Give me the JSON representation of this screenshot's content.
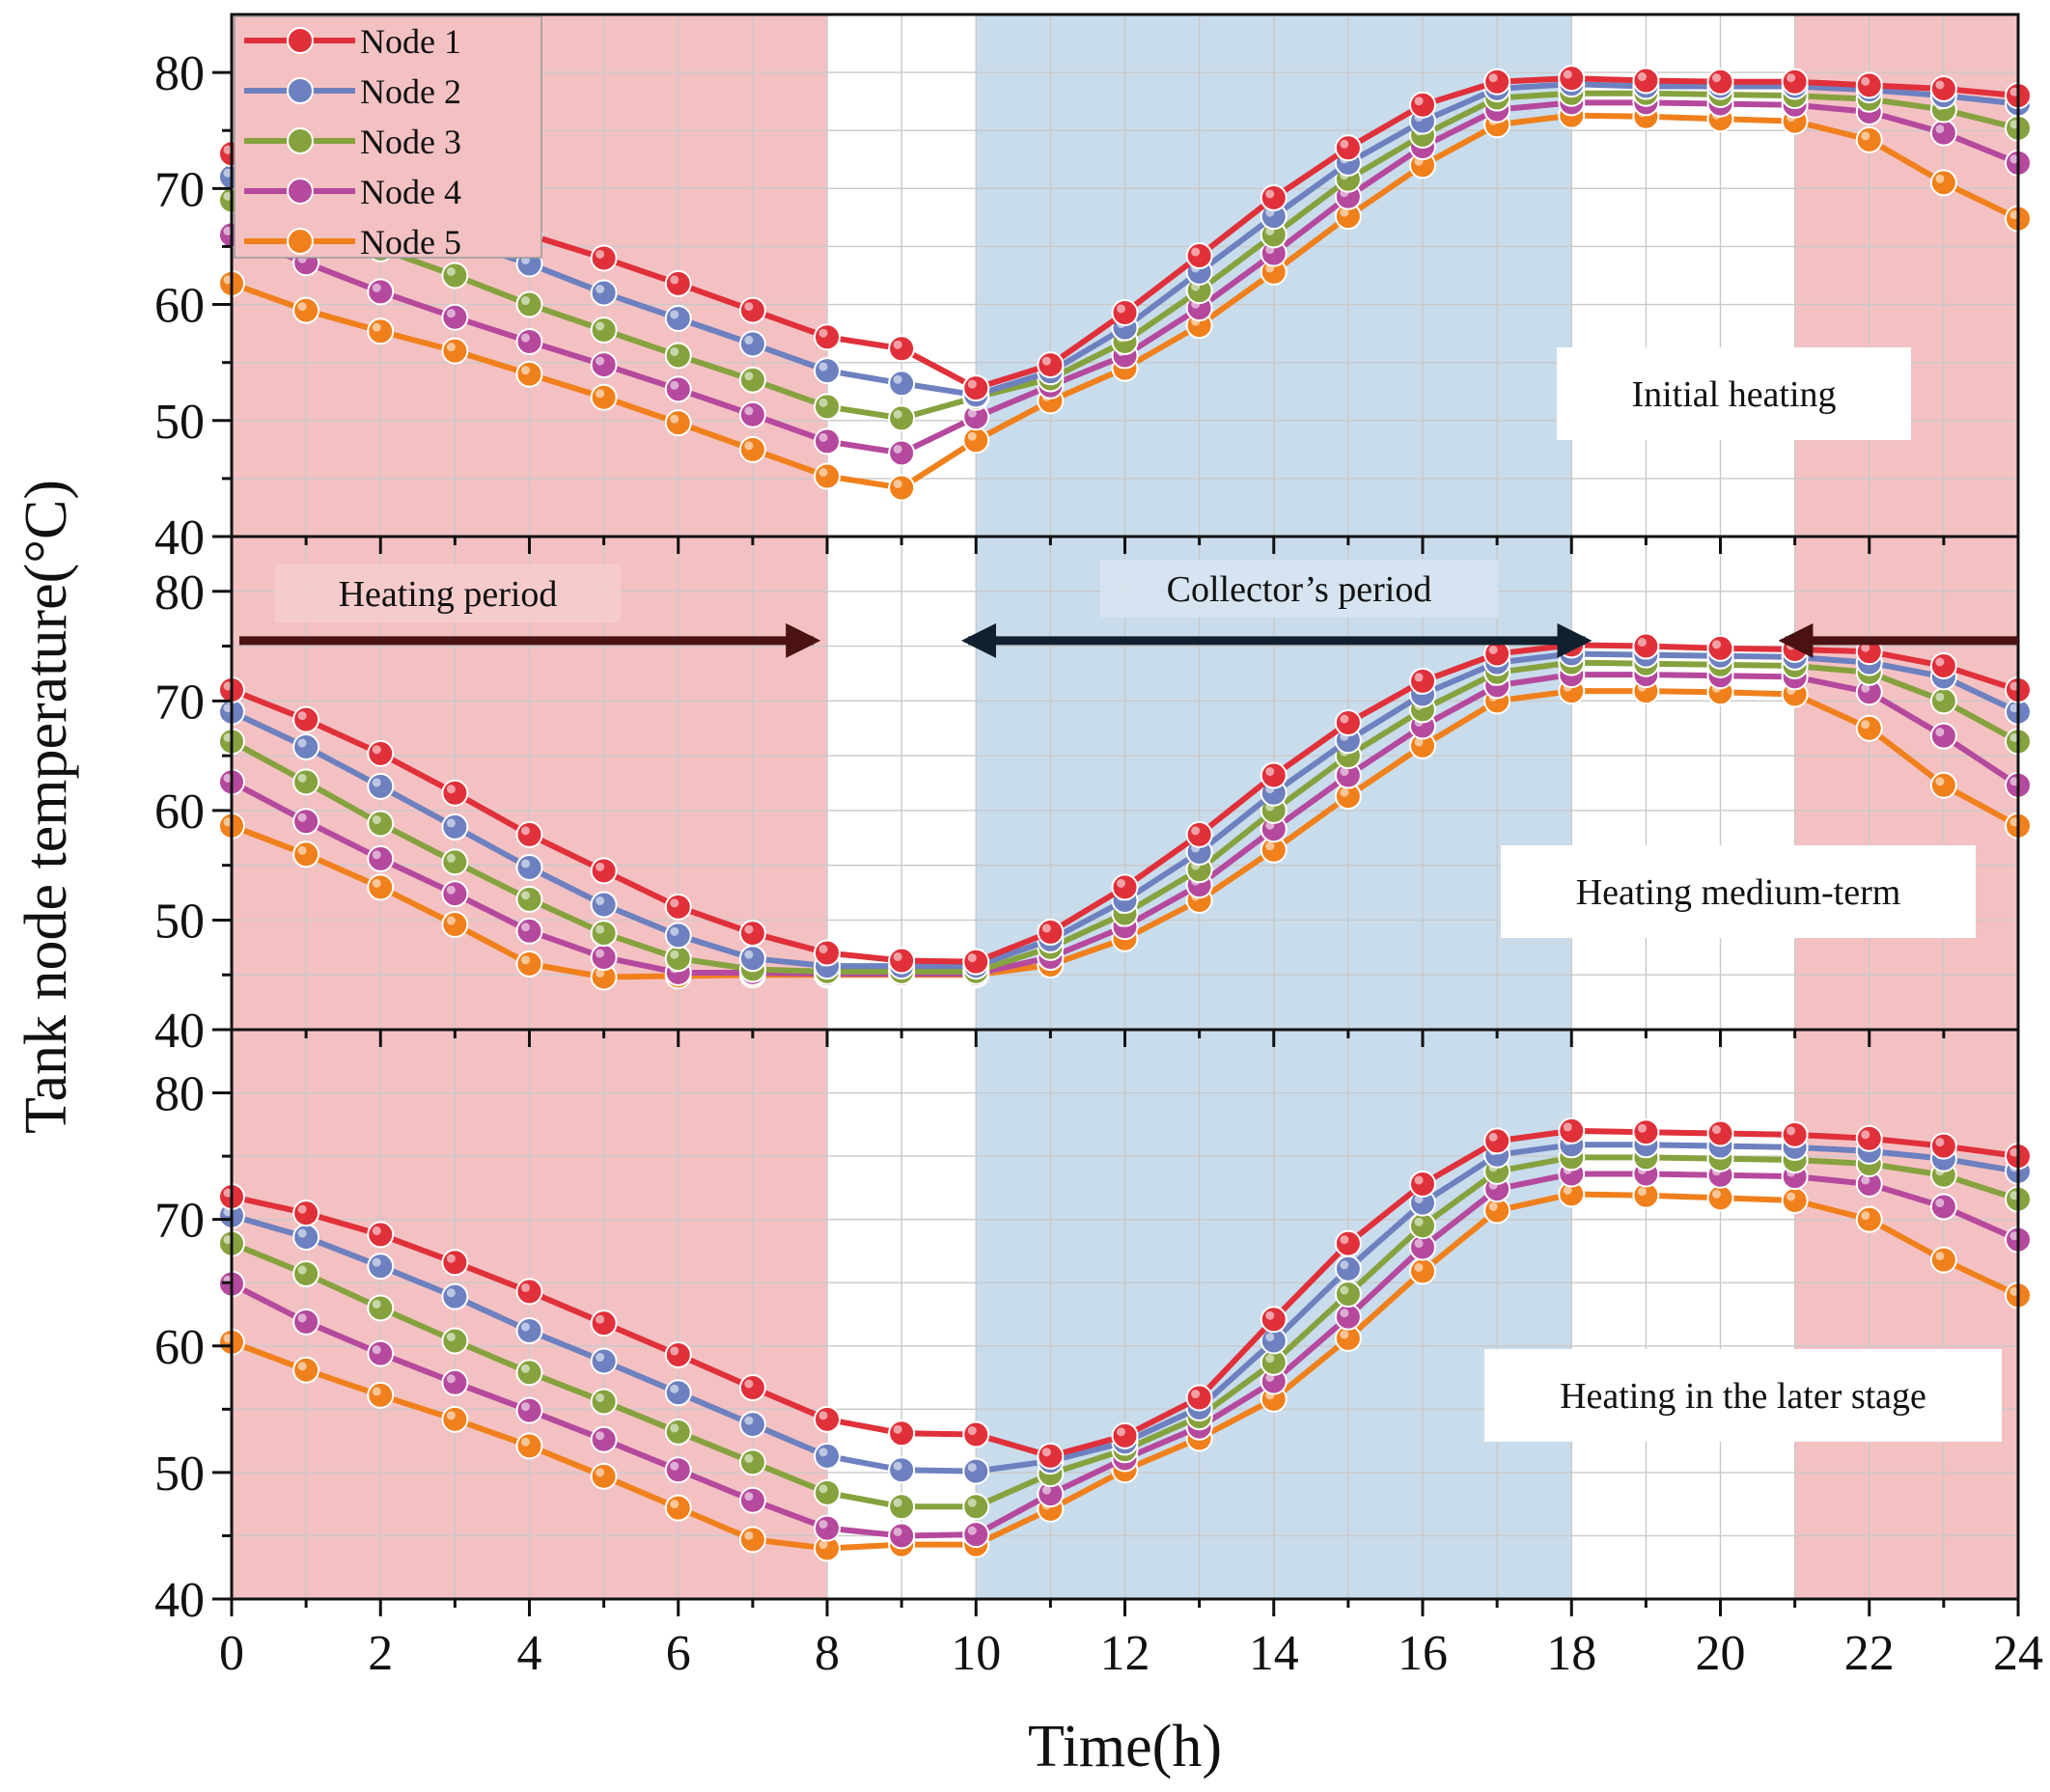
{
  "chart_data": {
    "type": "line",
    "ylabel": "Tank node temperature(°C)",
    "xlabel": "Time(h)",
    "xlim": [
      0,
      24
    ],
    "x_ticks": [
      "0",
      "2",
      "4",
      "6",
      "8",
      "10",
      "12",
      "14",
      "16",
      "18",
      "20",
      "22",
      "24"
    ],
    "x_ticks_values": [
      0,
      2,
      4,
      6,
      8,
      10,
      12,
      14,
      16,
      18,
      20,
      22,
      24
    ],
    "ylim": [
      40,
      85
    ],
    "y_ticks": [
      "40",
      "50",
      "60",
      "70",
      "80"
    ],
    "y_ticks_values": [
      40,
      50,
      60,
      70,
      80
    ],
    "grid": true,
    "legend_position": "top-left",
    "colors": {
      "heating_band": "#f4c1c3",
      "collector_band": "#c8dcec",
      "Node 1": "#e0303a",
      "Node 2": "#6d80bf",
      "Node 3": "#86a23e",
      "Node 4": "#b5499d",
      "Node 5": "#f0801c",
      "arrow_heating": "#4a1212",
      "arrow_collector": "#10202e"
    },
    "shaded_bands": [
      {
        "period": "heating",
        "x_start": 0,
        "x_end": 8
      },
      {
        "period": "collector",
        "x_start": 10,
        "x_end": 18
      },
      {
        "period": "heating",
        "x_start": 21,
        "x_end": 24
      }
    ],
    "period_annotations": [
      {
        "text": "Heating period",
        "arrow": "right",
        "x_start": 0,
        "x_end": 8,
        "y": 75.5
      },
      {
        "text": "Collector’s period",
        "arrow": "both",
        "x_start": 10,
        "x_end": 18,
        "y": 75.5
      },
      {
        "text": "",
        "arrow": "left",
        "x_start": 21,
        "x_end": 24,
        "y": 75.5
      }
    ],
    "x": [
      0,
      1,
      2,
      3,
      4,
      5,
      6,
      7,
      8,
      9,
      10,
      11,
      12,
      13,
      14,
      15,
      16,
      17,
      18,
      19,
      20,
      21,
      22,
      23,
      24
    ],
    "panels": [
      {
        "title": "Initial heating",
        "series": [
          {
            "name": "Node 1",
            "values": [
              73,
              71.5,
              69.8,
              68,
              66,
              64,
              61.8,
              59.5,
              57.2,
              56.2,
              52.8,
              54.8,
              59.3,
              64.2,
              69.2,
              73.5,
              77.2,
              79.2,
              79.5,
              79.3,
              79.2,
              79.2,
              78.9,
              78.6,
              78
            ]
          },
          {
            "name": "Node 2",
            "values": [
              71,
              69,
              67.4,
              65.6,
              63.5,
              61,
              58.8,
              56.6,
              54.3,
              53.2,
              52.2,
              54.2,
              58,
              62.8,
              67.6,
              72.2,
              75.8,
              78.6,
              79,
              78.8,
              78.8,
              78.8,
              78.5,
              78,
              77.3
            ]
          },
          {
            "name": "Node 3",
            "values": [
              69,
              67,
              64.8,
              62.5,
              60,
              57.8,
              55.6,
              53.5,
              51.2,
              50.2,
              52,
              53.6,
              56.8,
              61.2,
              66,
              70.8,
              74.6,
              77.8,
              78.2,
              78.2,
              78.1,
              78,
              77.7,
              76.8,
              75.2
            ]
          },
          {
            "name": "Node 4",
            "values": [
              66,
              63.6,
              61.1,
              58.9,
              56.8,
              54.8,
              52.7,
              50.5,
              48.2,
              47.2,
              50.3,
              53,
              55.6,
              59.7,
              64.4,
              69.3,
              73.6,
              76.8,
              77.4,
              77.4,
              77.3,
              77.2,
              76.6,
              74.8,
              72.2
            ]
          },
          {
            "name": "Node 5",
            "values": [
              61.8,
              59.5,
              57.7,
              56,
              54,
              52,
              49.8,
              47.5,
              45.2,
              44.2,
              48.3,
              51.7,
              54.5,
              58.2,
              62.8,
              67.6,
              72,
              75.5,
              76.3,
              76.2,
              76,
              75.8,
              74.2,
              70.5,
              67.4
            ]
          }
        ]
      },
      {
        "title": "Heating medium-term",
        "series": [
          {
            "name": "Node 1",
            "values": [
              71,
              68.3,
              65.2,
              61.6,
              57.8,
              54.5,
              51.2,
              48.8,
              47,
              46.3,
              46.2,
              48.9,
              53,
              57.8,
              63.2,
              68,
              71.8,
              74.3,
              75.1,
              75,
              74.8,
              74.7,
              74.5,
              73.2,
              71
            ]
          },
          {
            "name": "Node 2",
            "values": [
              69,
              65.8,
              62.2,
              58.5,
              54.8,
              51.4,
              48.6,
              46.5,
              45.8,
              45.8,
              45.8,
              48.2,
              51.8,
              56.2,
              61.6,
              66.4,
              70.6,
              73.5,
              74.3,
              74.2,
              74.1,
              74,
              73.5,
              72.2,
              69
            ]
          },
          {
            "name": "Node 3",
            "values": [
              66.3,
              62.6,
              58.8,
              55.3,
              51.9,
              48.8,
              46.5,
              45.5,
              45.3,
              45.3,
              45.3,
              47.5,
              50.6,
              54.6,
              60,
              65,
              69.2,
              72.6,
              73.5,
              73.4,
              73.3,
              73.2,
              72.6,
              70,
              66.3
            ]
          },
          {
            "name": "Node 4",
            "values": [
              62.6,
              59,
              55.6,
              52.4,
              49,
              46.6,
              45.2,
              45.2,
              45.1,
              45.1,
              45.1,
              46.6,
              49.4,
              53.2,
              58.3,
              63.2,
              67.7,
              71.4,
              72.4,
              72.4,
              72.3,
              72.2,
              70.8,
              66.8,
              62.3
            ]
          },
          {
            "name": "Node 5",
            "values": [
              58.6,
              56,
              53,
              49.6,
              46,
              44.8,
              44.9,
              45,
              45,
              45,
              45,
              45.9,
              48.3,
              51.8,
              56.4,
              61.3,
              65.9,
              70,
              70.9,
              70.9,
              70.8,
              70.6,
              67.5,
              62.3,
              58.6
            ]
          }
        ]
      },
      {
        "title": "Heating in the later stage",
        "series": [
          {
            "name": "Node 1",
            "values": [
              71.8,
              70.5,
              68.8,
              66.6,
              64.3,
              61.8,
              59.3,
              56.7,
              54.2,
              53.1,
              53,
              51.3,
              52.9,
              55.9,
              62.1,
              68.1,
              72.8,
              76.2,
              77,
              76.9,
              76.8,
              76.7,
              76.4,
              75.8,
              75
            ]
          },
          {
            "name": "Node 2",
            "values": [
              70.3,
              68.6,
              66.3,
              63.9,
              61.2,
              58.8,
              56.3,
              53.8,
              51.3,
              50.2,
              50.1,
              50.9,
              52.4,
              55.1,
              60.4,
              66.1,
              71.3,
              75.1,
              75.9,
              75.9,
              75.8,
              75.7,
              75.4,
              74.8,
              73.8
            ]
          },
          {
            "name": "Node 3",
            "values": [
              68.1,
              65.7,
              63,
              60.4,
              57.9,
              55.6,
              53.2,
              50.8,
              48.4,
              47.3,
              47.3,
              49.9,
              51.8,
              54.4,
              58.7,
              64.1,
              69.5,
              73.8,
              74.9,
              74.9,
              74.8,
              74.7,
              74.4,
              73.5,
              71.6
            ]
          },
          {
            "name": "Node 4",
            "values": [
              64.9,
              61.9,
              59.4,
              57.1,
              54.9,
              52.6,
              50.2,
              47.8,
              45.6,
              45,
              45.1,
              48.3,
              51.1,
              53.6,
              57.2,
              62.3,
              67.8,
              72.4,
              73.6,
              73.6,
              73.5,
              73.4,
              72.8,
              71,
              68.4
            ]
          },
          {
            "name": "Node 5",
            "values": [
              60.3,
              58.1,
              56.1,
              54.2,
              52.1,
              49.7,
              47.2,
              44.7,
              44,
              44.3,
              44.3,
              47.1,
              50.2,
              52.7,
              55.8,
              60.6,
              65.9,
              70.7,
              72,
              71.9,
              71.7,
              71.5,
              70,
              66.8,
              64
            ]
          }
        ]
      }
    ]
  }
}
